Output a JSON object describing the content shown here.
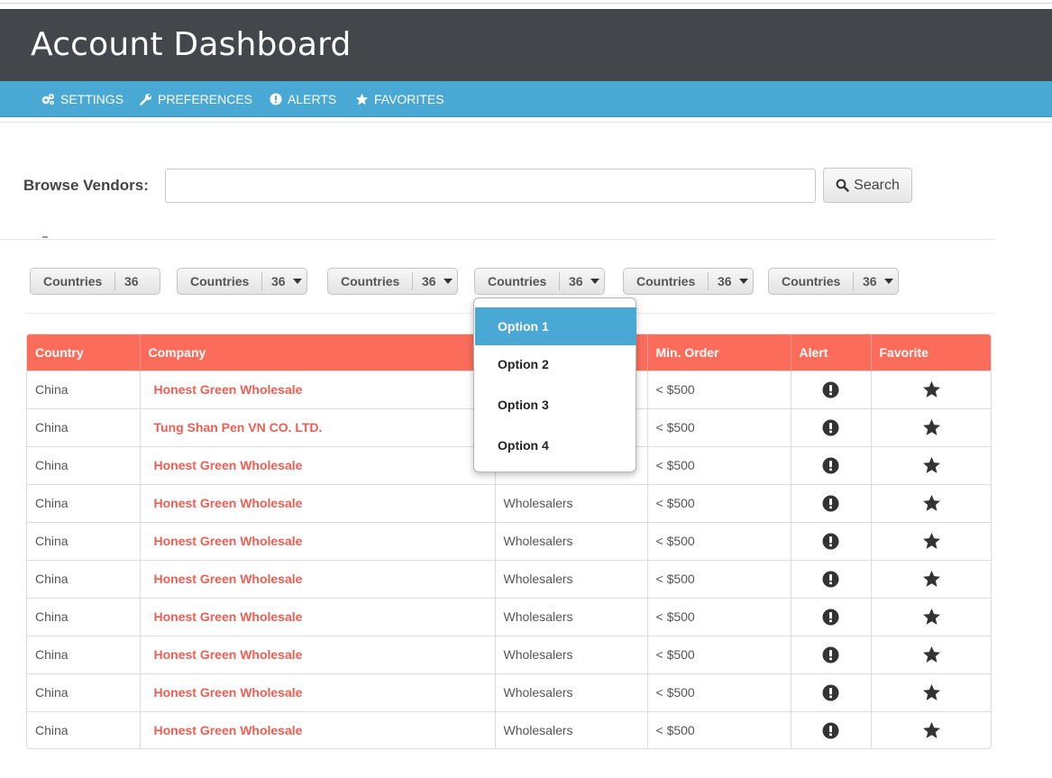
{
  "header": {
    "title": "Account Dashboard"
  },
  "nav": {
    "items": [
      {
        "label": "SETTINGS",
        "icon": "gears-icon"
      },
      {
        "label": "PREFERENCES",
        "icon": "wrench-icon"
      },
      {
        "label": "ALERTS",
        "icon": "exclamation-circle-icon"
      },
      {
        "label": "FAVORITES",
        "icon": "star-icon"
      }
    ]
  },
  "browse": {
    "label": "Browse Vendors:",
    "input_value": "",
    "search_label": "Search"
  },
  "filters": [
    {
      "label": "Countries",
      "count": "36"
    },
    {
      "label": "Countries",
      "count": "36"
    },
    {
      "label": "Countries",
      "count": "36"
    },
    {
      "label": "Countries",
      "count": "36"
    },
    {
      "label": "Countries",
      "count": "36"
    },
    {
      "label": "Countries",
      "count": "36"
    }
  ],
  "dropdown": {
    "options": [
      "Option 1",
      "Option 2",
      "Option 3",
      "Option 4"
    ],
    "selected": "Option 1"
  },
  "table": {
    "columns": [
      "Country",
      "Company",
      "",
      "Min. Order",
      "Alert",
      "Favorite"
    ],
    "rows": [
      {
        "country": "China",
        "company": "Honest Green Wholesale",
        "type": "",
        "min_order": "< $500"
      },
      {
        "country": "China",
        "company": "Tung Shan Pen VN CO. LTD.",
        "type": "",
        "min_order": "< $500"
      },
      {
        "country": "China",
        "company": "Honest Green Wholesale",
        "type": "",
        "min_order": "< $500"
      },
      {
        "country": "China",
        "company": "Honest Green Wholesale",
        "type": "Wholesalers",
        "min_order": "< $500"
      },
      {
        "country": "China",
        "company": "Honest Green Wholesale",
        "type": "Wholesalers",
        "min_order": "< $500"
      },
      {
        "country": "China",
        "company": "Honest Green Wholesale",
        "type": "Wholesalers",
        "min_order": "< $500"
      },
      {
        "country": "China",
        "company": "Honest Green Wholesale",
        "type": "Wholesalers",
        "min_order": "< $500"
      },
      {
        "country": "China",
        "company": "Honest Green Wholesale",
        "type": "Wholesalers",
        "min_order": "< $500"
      },
      {
        "country": "China",
        "company": "Honest Green Wholesale",
        "type": "Wholesalers",
        "min_order": "< $500"
      },
      {
        "country": "China",
        "company": "Honest Green Wholesale",
        "type": "Wholesalers",
        "min_order": "< $500"
      }
    ]
  },
  "colors": {
    "header_bg": "#43474c",
    "nav_bg": "#4aa8d4",
    "table_header_bg": "#fc6c5b",
    "company_link": "#ef5e52",
    "dropdown_active": "#4aa8d4"
  }
}
